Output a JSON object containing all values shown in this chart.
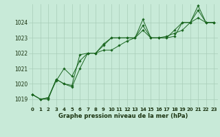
{
  "xlabel": "Graphe pression niveau de la mer (hPa)",
  "background_color": "#c8ead8",
  "grid_color": "#a8ccb8",
  "line_color": "#1a6620",
  "ylim": [
    1018.5,
    1025.2
  ],
  "xlim": [
    -0.5,
    23.5
  ],
  "yticks": [
    1019,
    1020,
    1021,
    1022,
    1023,
    1024
  ],
  "xticks": [
    0,
    1,
    2,
    3,
    4,
    5,
    6,
    7,
    8,
    9,
    10,
    11,
    12,
    13,
    14,
    15,
    16,
    17,
    18,
    19,
    20,
    21,
    22,
    23
  ],
  "series": [
    [
      1019.3,
      1019.0,
      1019.0,
      1020.3,
      1020.0,
      1019.9,
      1021.9,
      1022.0,
      1022.0,
      1022.6,
      1023.0,
      1023.0,
      1023.0,
      1023.0,
      1023.8,
      1023.0,
      1023.0,
      1023.0,
      1023.1,
      1024.0,
      1024.0,
      1025.1,
      1024.0,
      1024.0
    ],
    [
      1019.3,
      1019.0,
      1019.1,
      1020.3,
      1020.0,
      1019.8,
      1021.0,
      1022.0,
      1022.0,
      1022.2,
      1022.2,
      1022.5,
      1022.8,
      1023.0,
      1023.5,
      1023.0,
      1023.0,
      1023.1,
      1023.3,
      1023.5,
      1024.0,
      1024.3,
      1024.0,
      1024.0
    ],
    [
      1019.3,
      1019.0,
      1019.1,
      1020.2,
      1021.0,
      1020.5,
      1021.5,
      1022.0,
      1022.0,
      1022.5,
      1023.0,
      1023.0,
      1023.0,
      1023.0,
      1024.2,
      1023.0,
      1023.0,
      1023.0,
      1023.5,
      1024.0,
      1024.0,
      1024.8,
      1024.0,
      1024.0
    ]
  ],
  "xlabel_fontsize": 6.0,
  "ytick_fontsize": 5.5,
  "xtick_fontsize": 5.0
}
